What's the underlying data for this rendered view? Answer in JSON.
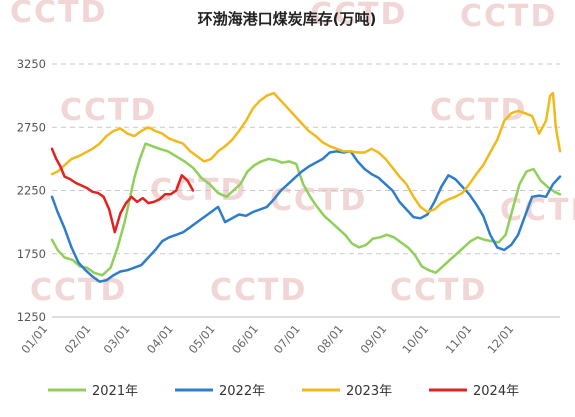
{
  "chart_data": {
    "type": "line",
    "title": "环渤海港口煤炭库存(万吨)",
    "watermark": "CCTD",
    "xlabel": "",
    "ylabel": "",
    "ylim": [
      1250,
      3250
    ],
    "yticks": [
      "3250",
      "2750",
      "2250",
      "1750",
      "1250"
    ],
    "ytick_values": [
      3250,
      2750,
      2250,
      1750,
      1250
    ],
    "x_unit": "day_of_year",
    "xlim": [
      1,
      365
    ],
    "xticks": [
      {
        "label": "01/01",
        "day": 1
      },
      {
        "label": "02/01",
        "day": 32
      },
      {
        "label": "03/01",
        "day": 60
      },
      {
        "label": "04/01",
        "day": 91
      },
      {
        "label": "05/01",
        "day": 121
      },
      {
        "label": "06/01",
        "day": 152
      },
      {
        "label": "07/01",
        "day": 182
      },
      {
        "label": "08/01",
        "day": 213
      },
      {
        "label": "09/01",
        "day": 244
      },
      {
        "label": "10/01",
        "day": 274
      },
      {
        "label": "11/01",
        "day": 305
      },
      {
        "label": "12/01",
        "day": 335
      }
    ],
    "grid": true,
    "legend_position": "bottom",
    "series": [
      {
        "name": "2021年",
        "color": "#8fcf5a",
        "points": [
          [
            1,
            1860
          ],
          [
            5,
            1780
          ],
          [
            10,
            1720
          ],
          [
            16,
            1700
          ],
          [
            21,
            1650
          ],
          [
            26,
            1640
          ],
          [
            31,
            1600
          ],
          [
            37,
            1580
          ],
          [
            43,
            1640
          ],
          [
            48,
            1800
          ],
          [
            53,
            2000
          ],
          [
            57,
            2200
          ],
          [
            60,
            2350
          ],
          [
            64,
            2500
          ],
          [
            68,
            2620
          ],
          [
            73,
            2600
          ],
          [
            78,
            2580
          ],
          [
            84,
            2560
          ],
          [
            90,
            2520
          ],
          [
            96,
            2480
          ],
          [
            102,
            2430
          ],
          [
            108,
            2350
          ],
          [
            114,
            2300
          ],
          [
            120,
            2230
          ],
          [
            126,
            2200
          ],
          [
            131,
            2250
          ],
          [
            136,
            2300
          ],
          [
            141,
            2400
          ],
          [
            146,
            2450
          ],
          [
            151,
            2480
          ],
          [
            156,
            2500
          ],
          [
            161,
            2490
          ],
          [
            166,
            2470
          ],
          [
            171,
            2480
          ],
          [
            176,
            2460
          ],
          [
            181,
            2300
          ],
          [
            186,
            2200
          ],
          [
            191,
            2120
          ],
          [
            196,
            2050
          ],
          [
            201,
            2000
          ],
          [
            206,
            1950
          ],
          [
            211,
            1900
          ],
          [
            216,
            1830
          ],
          [
            221,
            1800
          ],
          [
            226,
            1820
          ],
          [
            231,
            1870
          ],
          [
            236,
            1880
          ],
          [
            241,
            1900
          ],
          [
            246,
            1880
          ],
          [
            251,
            1840
          ],
          [
            256,
            1800
          ],
          [
            261,
            1740
          ],
          [
            266,
            1650
          ],
          [
            271,
            1620
          ],
          [
            276,
            1600
          ],
          [
            281,
            1650
          ],
          [
            286,
            1700
          ],
          [
            291,
            1750
          ],
          [
            296,
            1800
          ],
          [
            301,
            1850
          ],
          [
            306,
            1880
          ],
          [
            311,
            1860
          ],
          [
            316,
            1850
          ],
          [
            321,
            1840
          ],
          [
            326,
            1900
          ],
          [
            331,
            2100
          ],
          [
            336,
            2300
          ],
          [
            341,
            2400
          ],
          [
            346,
            2420
          ],
          [
            351,
            2330
          ],
          [
            356,
            2280
          ],
          [
            361,
            2240
          ],
          [
            365,
            2220
          ]
        ]
      },
      {
        "name": "2022年",
        "color": "#2e7ccc",
        "points": [
          [
            1,
            2200
          ],
          [
            5,
            2080
          ],
          [
            10,
            1950
          ],
          [
            15,
            1800
          ],
          [
            20,
            1680
          ],
          [
            25,
            1620
          ],
          [
            30,
            1570
          ],
          [
            35,
            1530
          ],
          [
            40,
            1540
          ],
          [
            45,
            1580
          ],
          [
            50,
            1610
          ],
          [
            55,
            1620
          ],
          [
            60,
            1640
          ],
          [
            65,
            1660
          ],
          [
            70,
            1720
          ],
          [
            75,
            1780
          ],
          [
            80,
            1850
          ],
          [
            85,
            1880
          ],
          [
            90,
            1900
          ],
          [
            95,
            1920
          ],
          [
            100,
            1960
          ],
          [
            105,
            2000
          ],
          [
            110,
            2040
          ],
          [
            115,
            2080
          ],
          [
            120,
            2120
          ],
          [
            125,
            2000
          ],
          [
            130,
            2030
          ],
          [
            135,
            2060
          ],
          [
            140,
            2050
          ],
          [
            145,
            2080
          ],
          [
            150,
            2100
          ],
          [
            155,
            2120
          ],
          [
            160,
            2180
          ],
          [
            165,
            2250
          ],
          [
            170,
            2300
          ],
          [
            175,
            2350
          ],
          [
            180,
            2400
          ],
          [
            185,
            2440
          ],
          [
            190,
            2470
          ],
          [
            195,
            2500
          ],
          [
            200,
            2550
          ],
          [
            205,
            2560
          ],
          [
            210,
            2550
          ],
          [
            215,
            2560
          ],
          [
            220,
            2480
          ],
          [
            225,
            2420
          ],
          [
            230,
            2380
          ],
          [
            235,
            2350
          ],
          [
            240,
            2300
          ],
          [
            245,
            2250
          ],
          [
            250,
            2160
          ],
          [
            255,
            2100
          ],
          [
            260,
            2040
          ],
          [
            265,
            2030
          ],
          [
            270,
            2060
          ],
          [
            275,
            2160
          ],
          [
            280,
            2280
          ],
          [
            285,
            2370
          ],
          [
            290,
            2340
          ],
          [
            295,
            2280
          ],
          [
            300,
            2220
          ],
          [
            305,
            2140
          ],
          [
            310,
            2050
          ],
          [
            315,
            1900
          ],
          [
            320,
            1800
          ],
          [
            325,
            1780
          ],
          [
            330,
            1820
          ],
          [
            335,
            1900
          ],
          [
            340,
            2050
          ],
          [
            345,
            2200
          ],
          [
            350,
            2210
          ],
          [
            355,
            2200
          ],
          [
            360,
            2300
          ],
          [
            365,
            2360
          ]
        ]
      },
      {
        "name": "2023年",
        "color": "#f2b91a",
        "points": [
          [
            1,
            2380
          ],
          [
            5,
            2400
          ],
          [
            10,
            2450
          ],
          [
            15,
            2500
          ],
          [
            20,
            2520
          ],
          [
            25,
            2550
          ],
          [
            30,
            2580
          ],
          [
            35,
            2620
          ],
          [
            40,
            2680
          ],
          [
            45,
            2720
          ],
          [
            50,
            2740
          ],
          [
            55,
            2700
          ],
          [
            60,
            2680
          ],
          [
            65,
            2720
          ],
          [
            70,
            2750
          ],
          [
            75,
            2720
          ],
          [
            80,
            2700
          ],
          [
            85,
            2660
          ],
          [
            90,
            2640
          ],
          [
            95,
            2620
          ],
          [
            100,
            2560
          ],
          [
            105,
            2520
          ],
          [
            110,
            2480
          ],
          [
            115,
            2500
          ],
          [
            120,
            2560
          ],
          [
            125,
            2600
          ],
          [
            130,
            2650
          ],
          [
            135,
            2720
          ],
          [
            140,
            2800
          ],
          [
            145,
            2900
          ],
          [
            150,
            2960
          ],
          [
            155,
            3000
          ],
          [
            160,
            3020
          ],
          [
            165,
            2960
          ],
          [
            170,
            2900
          ],
          [
            175,
            2840
          ],
          [
            180,
            2780
          ],
          [
            185,
            2720
          ],
          [
            190,
            2680
          ],
          [
            195,
            2630
          ],
          [
            200,
            2600
          ],
          [
            205,
            2580
          ],
          [
            210,
            2560
          ],
          [
            215,
            2560
          ],
          [
            220,
            2550
          ],
          [
            225,
            2550
          ],
          [
            230,
            2580
          ],
          [
            235,
            2550
          ],
          [
            240,
            2500
          ],
          [
            245,
            2430
          ],
          [
            250,
            2360
          ],
          [
            255,
            2300
          ],
          [
            260,
            2200
          ],
          [
            265,
            2120
          ],
          [
            270,
            2080
          ],
          [
            275,
            2100
          ],
          [
            280,
            2150
          ],
          [
            285,
            2180
          ],
          [
            290,
            2200
          ],
          [
            295,
            2230
          ],
          [
            300,
            2300
          ],
          [
            305,
            2380
          ],
          [
            310,
            2450
          ],
          [
            315,
            2550
          ],
          [
            320,
            2650
          ],
          [
            325,
            2800
          ],
          [
            330,
            2860
          ],
          [
            335,
            2880
          ],
          [
            340,
            2860
          ],
          [
            345,
            2840
          ],
          [
            350,
            2700
          ],
          [
            355,
            2800
          ],
          [
            358,
            3000
          ],
          [
            360,
            3020
          ],
          [
            362,
            2750
          ],
          [
            365,
            2560
          ]
        ]
      },
      {
        "name": "2024年",
        "color": "#e52020",
        "points": [
          [
            1,
            2580
          ],
          [
            4,
            2500
          ],
          [
            7,
            2440
          ],
          [
            10,
            2360
          ],
          [
            14,
            2340
          ],
          [
            18,
            2310
          ],
          [
            22,
            2290
          ],
          [
            26,
            2270
          ],
          [
            30,
            2240
          ],
          [
            34,
            2230
          ],
          [
            38,
            2200
          ],
          [
            42,
            2100
          ],
          [
            46,
            1920
          ],
          [
            50,
            2070
          ],
          [
            54,
            2150
          ],
          [
            58,
            2200
          ],
          [
            62,
            2160
          ],
          [
            66,
            2190
          ],
          [
            70,
            2150
          ],
          [
            74,
            2160
          ],
          [
            78,
            2180
          ],
          [
            82,
            2220
          ],
          [
            86,
            2220
          ],
          [
            90,
            2250
          ],
          [
            94,
            2370
          ],
          [
            98,
            2330
          ],
          [
            102,
            2250
          ]
        ]
      }
    ]
  }
}
